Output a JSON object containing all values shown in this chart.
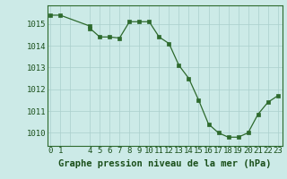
{
  "x": [
    0,
    1,
    4,
    4,
    5,
    6,
    7,
    8,
    9,
    10,
    11,
    12,
    13,
    14,
    15,
    16,
    17,
    18,
    19,
    20,
    21,
    22,
    23
  ],
  "y": [
    1015.4,
    1015.4,
    1014.9,
    1014.8,
    1014.4,
    1014.4,
    1014.35,
    1015.1,
    1015.1,
    1015.1,
    1014.4,
    1014.1,
    1013.1,
    1012.5,
    1011.5,
    1010.4,
    1010.0,
    1009.8,
    1009.8,
    1010.0,
    1010.85,
    1011.4,
    1011.7
  ],
  "line_color": "#2d6a2d",
  "marker_color": "#2d6a2d",
  "bg_color": "#cceae7",
  "grid_color": "#aacfcc",
  "xlabel": "Graphe pression niveau de la mer (hPa)",
  "xtick_labels": [
    "0",
    "1",
    "",
    "4",
    "5",
    "6",
    "7",
    "8",
    "9",
    "10",
    "11",
    "12",
    "13",
    "14",
    "15",
    "16",
    "17",
    "18",
    "19",
    "20",
    "21",
    "22",
    "23"
  ],
  "xtick_positions": [
    0,
    1,
    2,
    4,
    5,
    6,
    7,
    8,
    9,
    10,
    11,
    12,
    13,
    14,
    15,
    16,
    17,
    18,
    19,
    20,
    21,
    22,
    23
  ],
  "yticks": [
    1010,
    1011,
    1012,
    1013,
    1014,
    1015
  ],
  "ylim": [
    1009.4,
    1015.85
  ],
  "xlim": [
    -0.3,
    23.5
  ],
  "tick_label_color": "#1a4f1a",
  "xlabel_fontsize": 7.5,
  "tick_fontsize": 6.5
}
